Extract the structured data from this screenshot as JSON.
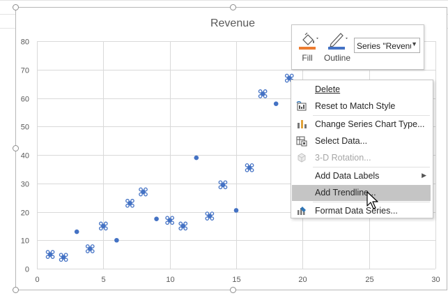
{
  "chart_data": {
    "type": "scatter",
    "title": "Revenue",
    "xlabel": "",
    "ylabel": "",
    "xlim": [
      0,
      30
    ],
    "ylim": [
      0,
      80
    ],
    "x_ticks": [
      "0",
      "5",
      "10",
      "15",
      "20",
      "25",
      "30"
    ],
    "y_ticks": [
      "0",
      "10",
      "20",
      "30",
      "40",
      "50",
      "60",
      "70",
      "80"
    ],
    "grid": true,
    "series": [
      {
        "name": "Revenue",
        "color": "#4472c4",
        "points": [
          {
            "x": 1,
            "y": 5,
            "selected": true
          },
          {
            "x": 2,
            "y": 4,
            "selected": true
          },
          {
            "x": 3,
            "y": 13,
            "selected": false
          },
          {
            "x": 4,
            "y": 7,
            "selected": true
          },
          {
            "x": 5,
            "y": 15,
            "selected": true
          },
          {
            "x": 6,
            "y": 10,
            "selected": false
          },
          {
            "x": 7,
            "y": 23,
            "selected": true
          },
          {
            "x": 8,
            "y": 27,
            "selected": true
          },
          {
            "x": 9,
            "y": 17.5,
            "selected": false
          },
          {
            "x": 10,
            "y": 17,
            "selected": true
          },
          {
            "x": 11,
            "y": 15,
            "selected": true
          },
          {
            "x": 12,
            "y": 39,
            "selected": false
          },
          {
            "x": 13,
            "y": 18.5,
            "selected": true
          },
          {
            "x": 14,
            "y": 29.5,
            "selected": true
          },
          {
            "x": 15,
            "y": 20.5,
            "selected": false
          },
          {
            "x": 16,
            "y": 35.5,
            "selected": true
          },
          {
            "x": 17,
            "y": 61.5,
            "selected": true
          },
          {
            "x": 18,
            "y": 58,
            "selected": false
          },
          {
            "x": 19,
            "y": 67,
            "selected": true
          }
        ]
      }
    ]
  },
  "toolbar": {
    "fill_label": "Fill",
    "outline_label": "Outline",
    "fill_color": "#ed7d31",
    "outline_color": "#4472c4",
    "series_select_value": "Series \"Revenue\""
  },
  "context_menu": {
    "items": [
      {
        "id": "delete",
        "label": "Delete",
        "icon": "none",
        "enabled": true
      },
      {
        "id": "reset-style",
        "label": "Reset to Match Style",
        "icon": "reset-style-icon",
        "enabled": true
      },
      {
        "id": "change-type",
        "label": "Change Series Chart Type...",
        "icon": "chart-type-icon",
        "enabled": true
      },
      {
        "id": "select-data",
        "label": "Select Data...",
        "icon": "select-data-icon",
        "enabled": true
      },
      {
        "id": "rotation",
        "label": "3-D Rotation...",
        "icon": "rotation-icon",
        "enabled": false
      },
      {
        "id": "data-labels",
        "label": "Add Data Labels",
        "icon": "none",
        "enabled": true,
        "submenu": true
      },
      {
        "id": "trendline",
        "label": "Add Trendline...",
        "icon": "none",
        "enabled": true,
        "highlighted": true
      },
      {
        "id": "format-series",
        "label": "Format Data Series...",
        "icon": "format-series-icon",
        "enabled": true
      }
    ]
  }
}
